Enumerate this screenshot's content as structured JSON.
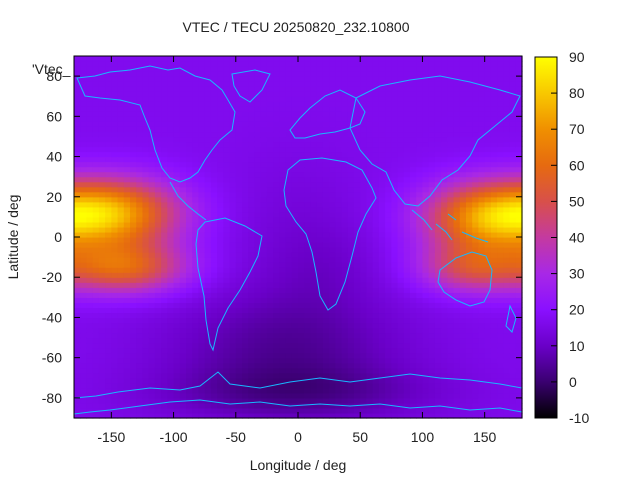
{
  "chart_data": {
    "type": "heatmap",
    "title": "VTEC / TECU 20250820_232.10800",
    "xlabel": "Longitude / deg",
    "ylabel": "Latitude / deg",
    "legend_entry": "'Vtec_",
    "xlim": [
      -180,
      180
    ],
    "ylim": [
      -90,
      90
    ],
    "xticks": [
      -150,
      -100,
      -50,
      0,
      50,
      100,
      150
    ],
    "yticks": [
      -80,
      -60,
      -40,
      -20,
      0,
      20,
      40,
      60,
      80
    ],
    "colorbar": {
      "range": [
        -10,
        90
      ],
      "ticks": [
        -10,
        0,
        10,
        20,
        30,
        40,
        50,
        60,
        70,
        80,
        90
      ],
      "colors": [
        "#000000",
        "#3a0070",
        "#6a00c8",
        "#8a10ff",
        "#a828e6",
        "#c43aa0",
        "#d8504a",
        "#e66a10",
        "#f09000",
        "#f8c800",
        "#ffff00"
      ]
    },
    "grid": {
      "lon_step": 5,
      "lat_step": 2.5,
      "background_level": 17,
      "features": [
        {
          "name": "equatorial-anomaly-pacific-north",
          "lon": -150,
          "lat": 12,
          "lon_sigma": 38,
          "lat_sigma": 12,
          "amplitude": 55
        },
        {
          "name": "equatorial-anomaly-pacific-south",
          "lon": -140,
          "lat": -15,
          "lon_sigma": 35,
          "lat_sigma": 9,
          "amplitude": 40
        },
        {
          "name": "equatorial-anomaly-asia-north",
          "lon": 150,
          "lat": 10,
          "lon_sigma": 35,
          "lat_sigma": 12,
          "amplitude": 48
        },
        {
          "name": "equatorial-anomaly-asia-south",
          "lon": 140,
          "lat": -15,
          "lon_sigma": 30,
          "lat_sigma": 9,
          "amplitude": 30
        },
        {
          "name": "low-south-atlantic",
          "lon": -10,
          "lat": -55,
          "lon_sigma": 70,
          "lat_sigma": 20,
          "amplitude": -12
        },
        {
          "name": "low-antarctic",
          "lon": 0,
          "lat": -78,
          "lon_sigma": 80,
          "lat_sigma": 10,
          "amplitude": -10
        },
        {
          "name": "low-atlantic-equator",
          "lon": 0,
          "lat": 0,
          "lon_sigma": 40,
          "lat_sigma": 30,
          "amplitude": -4
        },
        {
          "name": "low-africa",
          "lon": 25,
          "lat": -15,
          "lon_sigma": 30,
          "lat_sigma": 15,
          "amplitude": -3
        }
      ]
    }
  }
}
